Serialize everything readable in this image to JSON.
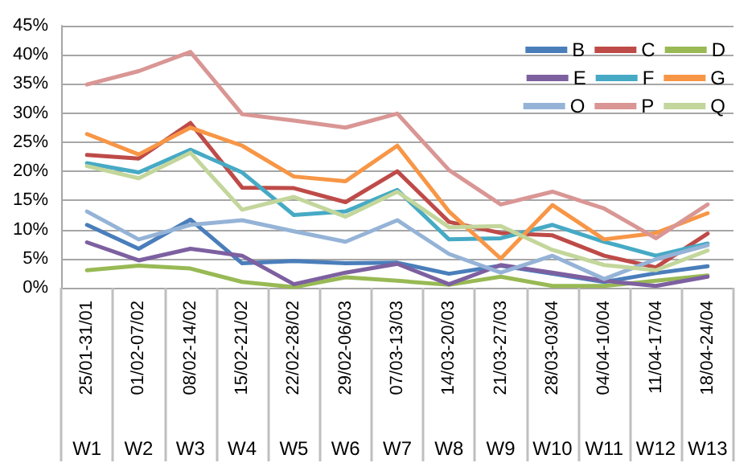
{
  "chart_data": {
    "type": "line",
    "categories": [
      "25/01-31/01",
      "01/02-07/02",
      "08/02-14/02",
      "15/02-21/02",
      "22/02-28/02",
      "29/02-06/03",
      "07/03-13/03",
      "14/03-20/03",
      "21/03-27/03",
      "28/03-03/04",
      "04/04-10/04",
      "11/04-17/04",
      "18/04-24/04"
    ],
    "annotations": [
      "W1",
      "W2",
      "W3",
      "W4",
      "W5",
      "W6",
      "W7",
      "W8",
      "W9",
      "W10",
      "W11",
      "W12",
      "W13"
    ],
    "series": [
      {
        "name": "B",
        "color": "#4a7ebb",
        "values": [
          10.8,
          6.7,
          11.7,
          4.2,
          4.6,
          4.2,
          4.3,
          2.4,
          3.8,
          2.4,
          1.0,
          2.5,
          3.7
        ]
      },
      {
        "name": "C",
        "color": "#be4b48",
        "values": [
          22.8,
          22.2,
          28.3,
          17.2,
          17.1,
          14.7,
          20.0,
          11.3,
          9.4,
          9.0,
          5.5,
          3.5,
          9.3
        ]
      },
      {
        "name": "D",
        "color": "#98b954",
        "values": [
          3.0,
          3.8,
          3.3,
          1.0,
          0.1,
          1.8,
          1.2,
          0.5,
          1.9,
          0.3,
          0.3,
          1.2,
          2.1
        ]
      },
      {
        "name": "E",
        "color": "#7d60a0",
        "values": [
          7.8,
          4.7,
          6.7,
          5.5,
          0.6,
          2.6,
          4.1,
          0.6,
          3.9,
          2.6,
          1.2,
          0.3,
          1.9
        ]
      },
      {
        "name": "F",
        "color": "#46aac5",
        "values": [
          21.4,
          19.8,
          23.7,
          19.8,
          12.5,
          13.1,
          16.8,
          8.3,
          8.5,
          10.8,
          7.9,
          5.5,
          7.6
        ]
      },
      {
        "name": "G",
        "color": "#f79646",
        "values": [
          26.4,
          22.9,
          27.5,
          24.4,
          19.1,
          18.3,
          24.4,
          13.1,
          5.0,
          14.2,
          8.3,
          9.4,
          12.8
        ]
      },
      {
        "name": "O",
        "color": "#95b3d7",
        "values": [
          13.1,
          8.3,
          10.8,
          11.6,
          9.7,
          7.9,
          11.6,
          5.8,
          2.6,
          5.5,
          1.5,
          4.9,
          7.3
        ]
      },
      {
        "name": "P",
        "color": "#d99694",
        "values": [
          34.9,
          37.2,
          40.5,
          29.8,
          28.7,
          27.5,
          29.9,
          20.2,
          14.3,
          16.5,
          13.6,
          8.5,
          14.3
        ]
      },
      {
        "name": "Q",
        "color": "#c3d69b",
        "values": [
          20.9,
          18.8,
          23.2,
          13.4,
          15.6,
          12.2,
          16.5,
          10.4,
          10.6,
          6.5,
          3.9,
          3.0,
          6.4
        ]
      }
    ],
    "ylim": [
      0,
      45
    ],
    "yticks": [
      {
        "value": 0,
        "label": "0%"
      },
      {
        "value": 5,
        "label": "5%"
      },
      {
        "value": 10,
        "label": "10%"
      },
      {
        "value": 15,
        "label": "15%"
      },
      {
        "value": 20,
        "label": "20%"
      },
      {
        "value": 25,
        "label": "25%"
      },
      {
        "value": 30,
        "label": "30%"
      },
      {
        "value": 35,
        "label": "35%"
      },
      {
        "value": 40,
        "label": "40%"
      },
      {
        "value": 45,
        "label": "45%"
      }
    ],
    "grid": "y",
    "legend": "top right",
    "marker": "none",
    "line_style": "solid"
  }
}
